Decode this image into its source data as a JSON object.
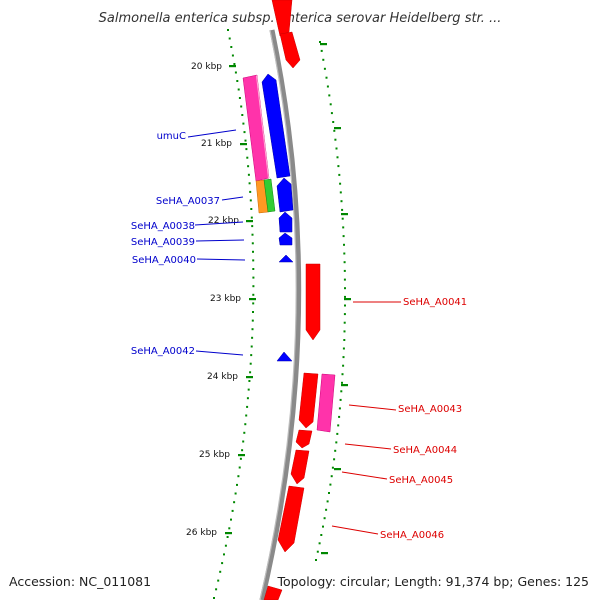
{
  "title": "Salmonella enterica subsp. enterica serovar Heidelberg str. ...",
  "footer": {
    "accession": "Accession: NC_011081",
    "summary": "Topology: circular; Length: 91,374 bp; Genes: 125"
  },
  "kbp_ticks": [
    "20 kbp",
    "21 kbp",
    "22 kbp",
    "23 kbp",
    "24 kbp",
    "25 kbp",
    "26 kbp"
  ],
  "colors": {
    "backbone": "#8a8a8a",
    "forward_gene": "#ff0000",
    "reverse_gene": "#0000ff",
    "magenta_gene": "#ff33aa",
    "orange_gene": "#ff9922",
    "green_gene": "#33cc33",
    "tick": "#008800",
    "label_left": "#0000cc",
    "label_right": "#dd0000"
  },
  "left_labels": [
    "umuC",
    "SeHA_A0037",
    "SeHA_A0038",
    "SeHA_A0039",
    "SeHA_A0040",
    "SeHA_A0042"
  ],
  "right_labels": [
    "SeHA_A0041",
    "SeHA_A0043",
    "SeHA_A0044",
    "SeHA_A0045",
    "SeHA_A0046"
  ]
}
